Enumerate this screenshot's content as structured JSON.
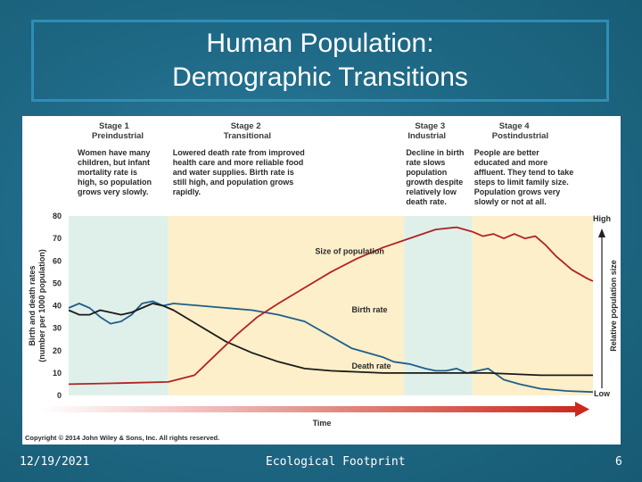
{
  "slide": {
    "title_line1": "Human Population:",
    "title_line2": "Demographic Transitions",
    "footer_date": "12/19/2021",
    "footer_center": "Ecological Footprint",
    "footer_page": "6"
  },
  "figure": {
    "stages": [
      {
        "name": "Stage 1",
        "sub": "Preindustrial",
        "desc": [
          "Women have many",
          "children, but infant",
          "mortality rate is",
          "high, so population",
          "grows very slowly."
        ],
        "color": "#dff0ea"
      },
      {
        "name": "Stage 2",
        "sub": "Transitional",
        "desc": [
          "Lowered death rate from improved",
          "health care and more reliable food",
          "and water supplies. Birth rate is",
          "still high, and population grows",
          "rapidly."
        ],
        "color": "#fcefc9"
      },
      {
        "name": "Stage 3",
        "sub": "Industrial",
        "desc": [
          "Decline in birth",
          "rate slows",
          "population",
          "growth despite",
          "relatively low",
          "death rate."
        ],
        "color": "#dff0ea"
      },
      {
        "name": "Stage 4",
        "sub": "Postindustrial",
        "desc": [
          "People are better",
          "educated and more",
          "affluent. They tend to take",
          "steps to limit family size.",
          "Population grows very",
          "slowly or not at all."
        ],
        "color": "#fcefc9"
      }
    ],
    "y_axis_label_line1": "Birth and death rates",
    "y_axis_label_line2": "(number per 1000 population)",
    "y_right_label": "Relative population size",
    "y_right_high": "High",
    "y_right_low": "Low",
    "x_label": "Time",
    "copyright": "Copyright © 2014 John Wiley & Sons, Inc. All rights reserved.",
    "labels": {
      "size": "Size of population",
      "birth": "Birth rate",
      "death": "Death rate"
    },
    "colors": {
      "birth": "#1f5f8b",
      "death": "#1a1a1a",
      "size": "#b22222",
      "arrow": "#cc2a1f"
    }
  },
  "chart_data": {
    "type": "line",
    "title": "",
    "xlabel": "Time",
    "ylabel": "Birth and death rates (number per 1000 population)",
    "ylim": [
      0,
      80
    ],
    "yticks": [
      0,
      10,
      20,
      30,
      40,
      50,
      60,
      70,
      80
    ],
    "x_note": "x is relative time from 0 (start) to 100 (end)",
    "stage_boundaries": [
      0,
      19,
      64,
      77,
      100
    ],
    "series": [
      {
        "name": "Birth rate",
        "x": [
          0,
          2,
          4,
          6,
          8,
          10,
          12,
          14,
          16,
          18,
          20,
          25,
          30,
          35,
          40,
          45,
          48,
          51,
          54,
          57,
          60,
          62,
          65,
          68,
          70,
          72,
          74,
          76,
          78,
          80,
          83,
          86,
          90,
          95,
          100
        ],
        "values": [
          39,
          41,
          39,
          35,
          32,
          33,
          36,
          41,
          42,
          40,
          41,
          40,
          39,
          38,
          36,
          33,
          29,
          25,
          21,
          19,
          17,
          15,
          14,
          12,
          11,
          11,
          12,
          10,
          11,
          12,
          7,
          5,
          3,
          2,
          1.5
        ]
      },
      {
        "name": "Death rate",
        "x": [
          0,
          2,
          4,
          6,
          8,
          10,
          12,
          14,
          16,
          18,
          20,
          25,
          30,
          35,
          40,
          45,
          50,
          55,
          60,
          65,
          70,
          75,
          80,
          85,
          90,
          95,
          100
        ],
        "values": [
          38,
          36,
          36,
          38,
          37,
          36,
          37,
          39,
          41,
          40,
          38,
          31,
          24,
          19,
          15,
          12,
          11,
          10.5,
          10,
          10,
          10,
          10,
          10,
          9.5,
          9,
          9,
          9
        ]
      },
      {
        "name": "Size of population",
        "axis": "right",
        "note": "relative size on the same 0–80 scale",
        "x": [
          0,
          10,
          19,
          24,
          28,
          32,
          36,
          40,
          45,
          50,
          55,
          60,
          65,
          70,
          74,
          77,
          79,
          81,
          83,
          85,
          87,
          89,
          91,
          93,
          96,
          99,
          100
        ],
        "values": [
          5,
          5.5,
          6,
          9,
          18,
          27,
          35,
          41,
          48,
          55,
          61,
          66,
          70,
          74,
          75,
          73,
          71,
          72,
          70,
          72,
          70,
          71,
          67,
          62,
          56,
          52,
          51
        ]
      }
    ]
  }
}
